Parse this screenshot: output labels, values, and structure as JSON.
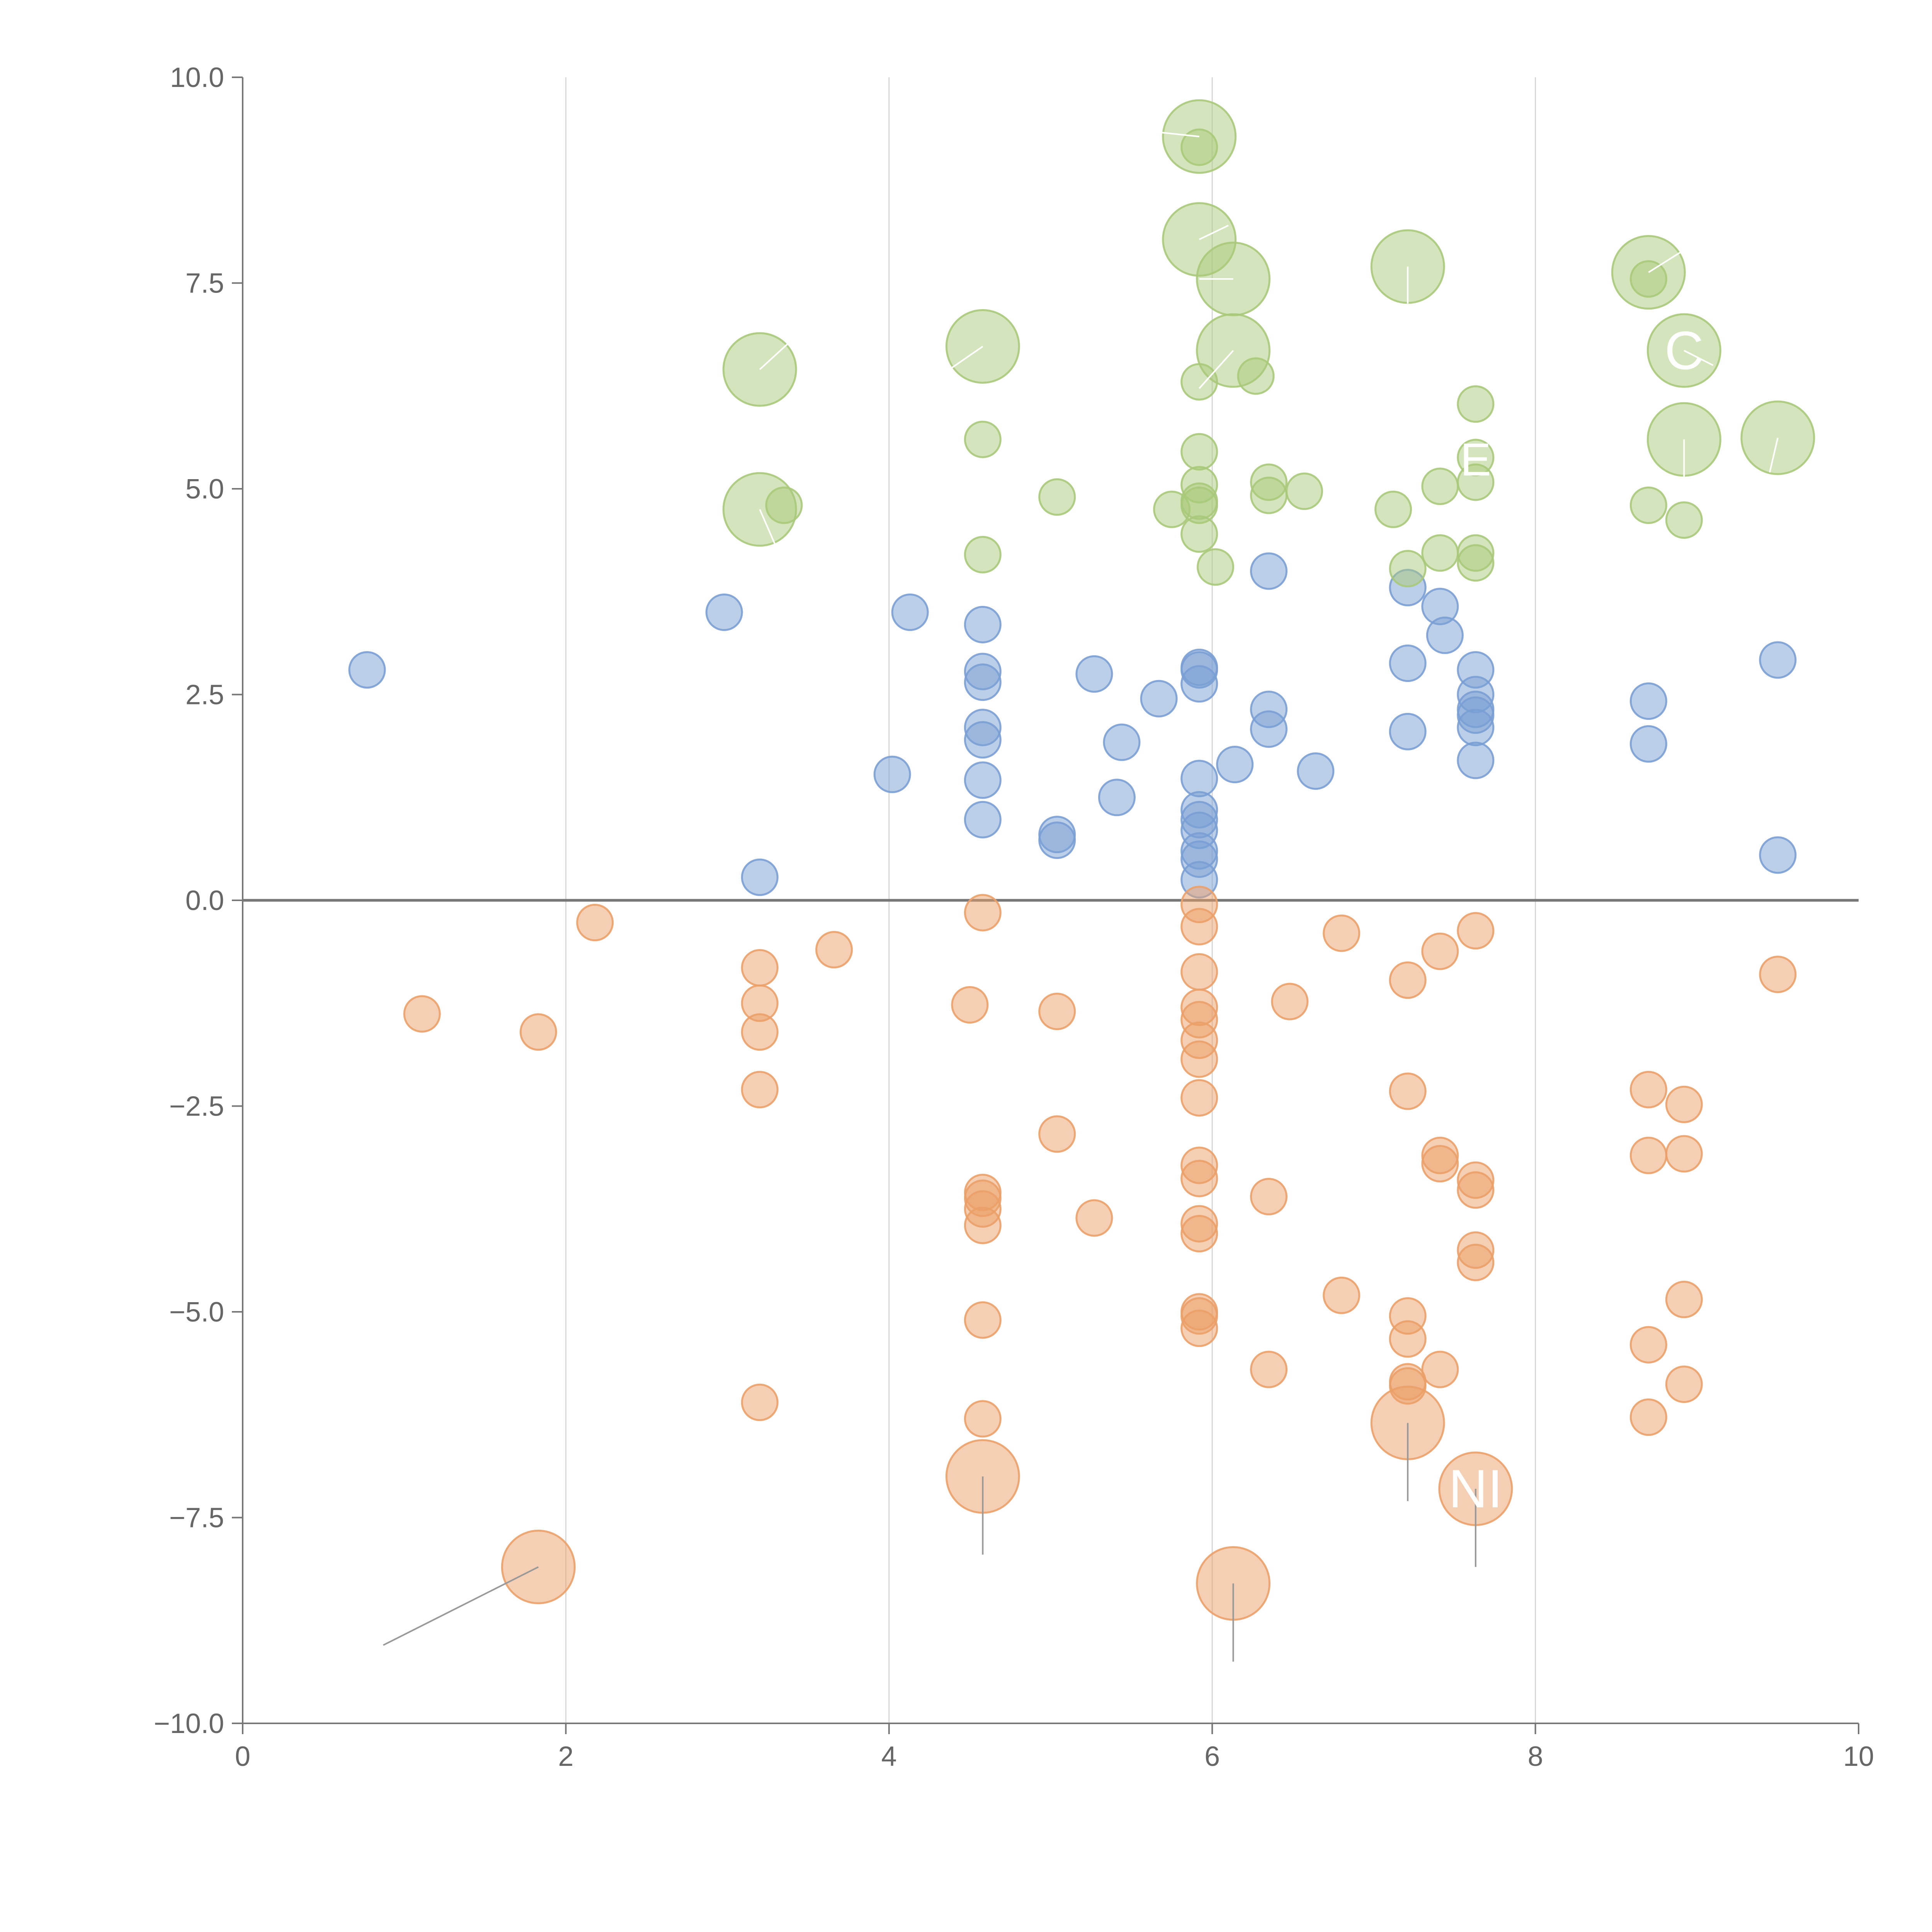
{
  "chart_data": {
    "type": "scatter",
    "title": "",
    "xlabel": "",
    "ylabel": "",
    "xlim": [
      0,
      10
    ],
    "ylim": [
      -10,
      10
    ],
    "x_ticks": [
      "0",
      "2",
      "4",
      "6",
      "8",
      "10"
    ],
    "y_ticks": [
      "10.0",
      "7.5",
      "5.0",
      "2.5",
      "0.0",
      "−2.5",
      "−5.0",
      "−7.5",
      "−10.0"
    ],
    "colors": {
      "blue": "#7a9fd4",
      "green": "#a9c97a",
      "orange": "#eba068",
      "leader_light": "#ffffff",
      "leader_dark": "#999999"
    },
    "series": [
      {
        "name": "blue",
        "points": [
          [
            0.77,
            2.8
          ],
          [
            2.98,
            3.5
          ],
          [
            3.2,
            0.28
          ],
          [
            4.02,
            1.53
          ],
          [
            4.13,
            3.5
          ],
          [
            4.58,
            3.35
          ],
          [
            4.58,
            2.78
          ],
          [
            4.58,
            2.65
          ],
          [
            4.58,
            2.1
          ],
          [
            4.58,
            1.95
          ],
          [
            4.58,
            1.46
          ],
          [
            4.58,
            0.98
          ],
          [
            5.04,
            0.8
          ],
          [
            5.04,
            0.73
          ],
          [
            5.27,
            2.75
          ],
          [
            5.41,
            1.25
          ],
          [
            5.44,
            1.92
          ],
          [
            5.67,
            2.45
          ],
          [
            5.92,
            2.83
          ],
          [
            5.92,
            2.8
          ],
          [
            5.92,
            2.63
          ],
          [
            5.92,
            1.48
          ],
          [
            5.92,
            1.1
          ],
          [
            5.92,
            0.98
          ],
          [
            5.92,
            0.85
          ],
          [
            5.92,
            0.6
          ],
          [
            5.92,
            0.5
          ],
          [
            5.92,
            0.25
          ],
          [
            6.14,
            1.65
          ],
          [
            6.35,
            4.0
          ],
          [
            6.35,
            2.32
          ],
          [
            6.35,
            2.08
          ],
          [
            6.64,
            1.57
          ],
          [
            7.21,
            3.8
          ],
          [
            7.21,
            2.88
          ],
          [
            7.21,
            2.05
          ],
          [
            7.41,
            3.57
          ],
          [
            7.44,
            3.22
          ],
          [
            7.63,
            2.8
          ],
          [
            7.63,
            2.5
          ],
          [
            7.63,
            2.32
          ],
          [
            7.63,
            2.25
          ],
          [
            7.63,
            2.1
          ],
          [
            7.63,
            1.7
          ],
          [
            8.7,
            2.42
          ],
          [
            8.7,
            1.9
          ],
          [
            9.5,
            2.92
          ],
          [
            9.5,
            0.55
          ]
        ]
      },
      {
        "name": "green",
        "points": [
          [
            3.35,
            4.8
          ],
          [
            4.58,
            5.6
          ],
          [
            4.58,
            4.2
          ],
          [
            5.04,
            4.9
          ],
          [
            5.75,
            4.75
          ],
          [
            5.92,
            9.15
          ],
          [
            5.92,
            6.3
          ],
          [
            5.92,
            5.45
          ],
          [
            5.92,
            5.05
          ],
          [
            5.92,
            4.85
          ],
          [
            5.92,
            4.8
          ],
          [
            5.92,
            4.45
          ],
          [
            6.02,
            4.05
          ],
          [
            6.27,
            6.37
          ],
          [
            6.35,
            5.08
          ],
          [
            6.35,
            4.92
          ],
          [
            6.57,
            4.97
          ],
          [
            7.12,
            4.75
          ],
          [
            7.21,
            4.03
          ],
          [
            7.41,
            5.03
          ],
          [
            7.41,
            4.22
          ],
          [
            7.63,
            6.03
          ],
          [
            7.63,
            5.38
          ],
          [
            7.63,
            5.08
          ],
          [
            7.63,
            4.22
          ],
          [
            7.63,
            4.1
          ],
          [
            8.7,
            7.55
          ],
          [
            8.7,
            4.8
          ],
          [
            8.92,
            4.62
          ]
        ]
      },
      {
        "name": "orange",
        "points": [
          [
            1.11,
            -1.38
          ],
          [
            1.83,
            -1.6
          ],
          [
            2.18,
            -0.27
          ],
          [
            3.2,
            -0.82
          ],
          [
            3.2,
            -1.25
          ],
          [
            3.2,
            -1.6
          ],
          [
            3.2,
            -2.3
          ],
          [
            3.2,
            -6.1
          ],
          [
            3.66,
            -0.6
          ],
          [
            4.5,
            -1.27
          ],
          [
            4.58,
            -0.15
          ],
          [
            4.58,
            -3.55
          ],
          [
            4.58,
            -3.62
          ],
          [
            4.58,
            -3.75
          ],
          [
            4.58,
            -3.95
          ],
          [
            4.58,
            -5.1
          ],
          [
            4.58,
            -6.3
          ],
          [
            5.04,
            -1.35
          ],
          [
            5.04,
            -2.84
          ],
          [
            5.27,
            -3.86
          ],
          [
            5.92,
            -0.05
          ],
          [
            5.92,
            -0.32
          ],
          [
            5.92,
            -0.87
          ],
          [
            5.92,
            -1.3
          ],
          [
            5.92,
            -1.45
          ],
          [
            5.92,
            -1.7
          ],
          [
            5.92,
            -1.93
          ],
          [
            5.92,
            -2.4
          ],
          [
            5.92,
            -3.22
          ],
          [
            5.92,
            -3.38
          ],
          [
            5.92,
            -3.93
          ],
          [
            5.92,
            -4.05
          ],
          [
            5.92,
            -5.0
          ],
          [
            5.92,
            -5.05
          ],
          [
            5.92,
            -5.2
          ],
          [
            6.35,
            -3.6
          ],
          [
            6.35,
            -5.7
          ],
          [
            6.48,
            -1.23
          ],
          [
            6.8,
            -0.4
          ],
          [
            6.8,
            -4.8
          ],
          [
            7.21,
            -0.97
          ],
          [
            7.21,
            -2.32
          ],
          [
            7.21,
            -5.05
          ],
          [
            7.21,
            -5.33
          ],
          [
            7.21,
            -5.85
          ],
          [
            7.21,
            -5.9
          ],
          [
            7.41,
            -0.62
          ],
          [
            7.41,
            -3.1
          ],
          [
            7.41,
            -3.2
          ],
          [
            7.41,
            -5.7
          ],
          [
            7.63,
            -0.37
          ],
          [
            7.63,
            -3.4
          ],
          [
            7.63,
            -3.52
          ],
          [
            7.63,
            -4.25
          ],
          [
            7.63,
            -4.4
          ],
          [
            8.7,
            -2.3
          ],
          [
            8.7,
            -3.1
          ],
          [
            8.7,
            -5.4
          ],
          [
            8.7,
            -6.28
          ],
          [
            8.92,
            -2.48
          ],
          [
            8.92,
            -3.08
          ],
          [
            8.92,
            -4.85
          ],
          [
            8.92,
            -5.88
          ],
          [
            9.5,
            -0.9
          ]
        ]
      }
    ],
    "highlighted": [
      {
        "series": "green",
        "x": 5.92,
        "y": 9.28,
        "label": "",
        "leader": "light",
        "lx": 5.68,
        "ly": 9.33
      },
      {
        "series": "green",
        "x": 5.92,
        "y": 8.03,
        "label": "",
        "leader": "light",
        "lx": 6.1,
        "ly": 8.2
      },
      {
        "series": "green",
        "x": 6.13,
        "y": 7.55,
        "label": "",
        "leader": "light",
        "lx": 5.92,
        "ly": 7.55
      },
      {
        "series": "green",
        "x": 7.21,
        "y": 7.7,
        "label": "",
        "leader": "light",
        "lx": 7.21,
        "ly": 7.25
      },
      {
        "series": "green",
        "x": 8.7,
        "y": 7.63,
        "label": "",
        "leader": "light",
        "lx": 9.0,
        "ly": 8.0
      },
      {
        "series": "green",
        "x": 4.58,
        "y": 6.73,
        "label": "",
        "leader": "light",
        "lx": 4.3,
        "ly": 6.35
      },
      {
        "series": "green",
        "x": 6.13,
        "y": 6.68,
        "label": "",
        "leader": "light",
        "lx": 5.92,
        "ly": 6.22
      },
      {
        "series": "green",
        "x": 8.92,
        "y": 6.68,
        "label": "C",
        "leader": "light",
        "lx": 9.1,
        "ly": 6.5
      },
      {
        "series": "green",
        "x": 3.2,
        "y": 6.45,
        "label": "",
        "leader": "light",
        "lx": 3.45,
        "ly": 6.9
      },
      {
        "series": "green",
        "x": 8.92,
        "y": 5.6,
        "label": "",
        "leader": "light",
        "lx": 8.92,
        "ly": 5.05
      },
      {
        "series": "green",
        "x": 9.5,
        "y": 5.62,
        "label": "",
        "leader": "light",
        "lx": 9.45,
        "ly": 5.2
      },
      {
        "series": "green",
        "x": 3.2,
        "y": 4.75,
        "label": "",
        "leader": "light",
        "lx": 3.3,
        "ly": 4.3
      },
      {
        "series": "orange",
        "x": 1.83,
        "y": -8.1,
        "label": "",
        "leader": "dark",
        "lx": 0.87,
        "ly": -9.05
      },
      {
        "series": "orange",
        "x": 4.58,
        "y": -7.0,
        "label": "",
        "leader": "dark",
        "lx": 4.58,
        "ly": -7.95
      },
      {
        "series": "orange",
        "x": 6.13,
        "y": -8.3,
        "label": "",
        "leader": "dark",
        "lx": 6.13,
        "ly": -9.25
      },
      {
        "series": "orange",
        "x": 7.21,
        "y": -6.35,
        "label": "",
        "leader": "dark",
        "lx": 7.21,
        "ly": -7.3
      },
      {
        "series": "orange",
        "x": 7.63,
        "y": -7.15,
        "label": "NI",
        "leader": "dark",
        "lx": 7.63,
        "ly": -8.1
      }
    ],
    "annotations": [
      {
        "text": "E",
        "x": 7.63,
        "y": 5.35
      }
    ]
  }
}
